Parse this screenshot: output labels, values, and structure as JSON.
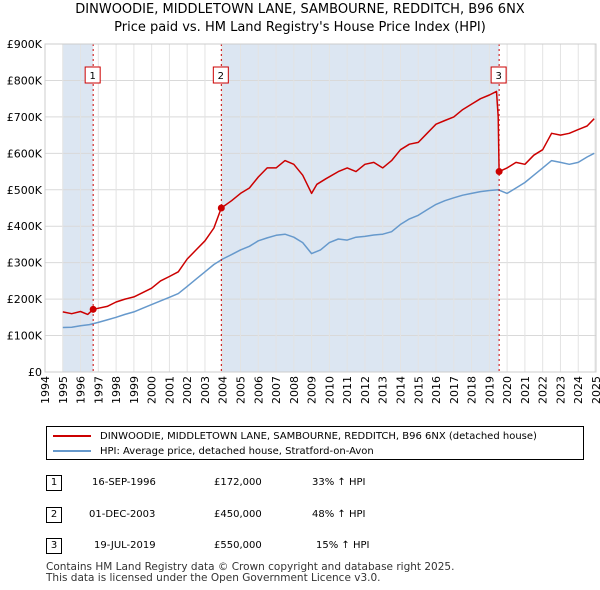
{
  "title_line1": "DINWOODIE, MIDDLETOWN LANE, SAMBOURNE, REDDITCH, B96 6NX",
  "title_line2": "Price paid vs. HM Land Registry's House Price Index (HPI)",
  "chart_data": {
    "type": "line",
    "title": "Price paid vs. HM Land Registry's House Price Index (HPI)",
    "xlabel": "",
    "ylabel": "",
    "xlim": [
      1995,
      2025
    ],
    "ylim": [
      0,
      900000
    ],
    "x_ticks": [
      1994,
      1995,
      1996,
      1997,
      1998,
      1999,
      2000,
      2001,
      2002,
      2003,
      2004,
      2005,
      2006,
      2007,
      2008,
      2009,
      2010,
      2011,
      2012,
      2013,
      2014,
      2015,
      2016,
      2017,
      2018,
      2019,
      2020,
      2021,
      2022,
      2023,
      2024,
      2025
    ],
    "y_ticks": [
      0,
      100000,
      200000,
      300000,
      400000,
      500000,
      600000,
      700000,
      800000,
      900000
    ],
    "y_tick_labels": [
      "£0",
      "£100K",
      "£200K",
      "£300K",
      "£400K",
      "£500K",
      "£600K",
      "£700K",
      "£800K",
      "£900K"
    ],
    "series": [
      {
        "name": "DINWOODIE, MIDDLETOWN LANE, SAMBOURNE, REDDITCH, B96 6NX (detached house)",
        "color": "#cc0000",
        "x": [
          1995.0,
          1995.5,
          1996.0,
          1996.4,
          1996.71,
          1997.5,
          1998.0,
          1998.5,
          1999.0,
          1999.5,
          2000.0,
          2000.5,
          2001.0,
          2001.5,
          2002.0,
          2002.5,
          2003.0,
          2003.5,
          2003.92,
          2004.5,
          2005.0,
          2005.5,
          2006.0,
          2006.5,
          2007.0,
          2007.5,
          2008.0,
          2008.5,
          2009.0,
          2009.3,
          2009.8,
          2010.5,
          2011.0,
          2011.5,
          2012.0,
          2012.5,
          2013.0,
          2013.5,
          2014.0,
          2014.5,
          2015.0,
          2015.5,
          2016.0,
          2016.5,
          2017.0,
          2017.5,
          2018.0,
          2018.5,
          2019.0,
          2019.4,
          2019.5,
          2019.55,
          2020.0,
          2020.5,
          2021.0,
          2021.5,
          2022.0,
          2022.5,
          2023.0,
          2023.5,
          2024.0,
          2024.5,
          2024.9
        ],
        "values": [
          165000,
          160000,
          166000,
          158000,
          172000,
          180000,
          192000,
          200000,
          206000,
          218000,
          230000,
          250000,
          262000,
          275000,
          310000,
          335000,
          360000,
          395000,
          450000,
          470000,
          490000,
          505000,
          535000,
          560000,
          560000,
          580000,
          570000,
          540000,
          490000,
          515000,
          530000,
          550000,
          560000,
          550000,
          570000,
          575000,
          560000,
          580000,
          610000,
          625000,
          630000,
          655000,
          680000,
          690000,
          700000,
          720000,
          735000,
          750000,
          760000,
          770000,
          700000,
          550000,
          560000,
          575000,
          570000,
          595000,
          610000,
          655000,
          650000,
          655000,
          665000,
          675000,
          695000
        ]
      },
      {
        "name": "HPI: Average price, detached house, Stratford-on-Avon",
        "color": "#6699cc",
        "x": [
          1995.0,
          1995.5,
          1996.0,
          1996.5,
          1997.0,
          1997.5,
          1998.0,
          1998.5,
          1999.0,
          1999.5,
          2000.0,
          2000.5,
          2001.0,
          2001.5,
          2002.0,
          2002.5,
          2003.0,
          2003.5,
          2004.0,
          2004.5,
          2005.0,
          2005.5,
          2006.0,
          2006.5,
          2007.0,
          2007.5,
          2008.0,
          2008.5,
          2009.0,
          2009.5,
          2010.0,
          2010.5,
          2011.0,
          2011.5,
          2012.0,
          2012.5,
          2013.0,
          2013.5,
          2014.0,
          2014.5,
          2015.0,
          2015.5,
          2016.0,
          2016.5,
          2017.0,
          2017.5,
          2018.0,
          2018.5,
          2019.0,
          2019.5,
          2020.0,
          2020.5,
          2021.0,
          2021.5,
          2022.0,
          2022.5,
          2023.0,
          2023.5,
          2024.0,
          2024.5,
          2024.9
        ],
        "values": [
          122000,
          123000,
          127000,
          130000,
          136000,
          143000,
          150000,
          158000,
          165000,
          175000,
          185000,
          195000,
          205000,
          215000,
          235000,
          255000,
          275000,
          295000,
          310000,
          322000,
          335000,
          345000,
          360000,
          368000,
          375000,
          378000,
          370000,
          355000,
          325000,
          335000,
          355000,
          365000,
          362000,
          370000,
          372000,
          376000,
          378000,
          385000,
          405000,
          420000,
          430000,
          445000,
          460000,
          470000,
          478000,
          485000,
          490000,
          495000,
          498000,
          500000,
          490000,
          505000,
          520000,
          540000,
          560000,
          580000,
          575000,
          570000,
          575000,
          590000,
          600000
        ]
      }
    ],
    "sale_markers": [
      {
        "label": "1",
        "x": 1996.71,
        "value": 172000
      },
      {
        "label": "2",
        "x": 2003.92,
        "value": 450000
      },
      {
        "label": "3",
        "x": 2019.55,
        "value": 550000
      }
    ],
    "legend_position": "below"
  },
  "legend": {
    "red": "DINWOODIE, MIDDLETOWN LANE, SAMBOURNE, REDDITCH, B96 6NX (detached house)",
    "blue": "HPI: Average price, detached house, Stratford-on-Avon"
  },
  "colors": {
    "red": "#cc0000",
    "blue": "#6699cc",
    "band": "#dce6f2"
  },
  "table": [
    {
      "num": "1",
      "date": "16-SEP-1996",
      "price": "£172,000",
      "hpi": "33% ↑ HPI"
    },
    {
      "num": "2",
      "date": "01-DEC-2003",
      "price": "£450,000",
      "hpi": "48% ↑ HPI"
    },
    {
      "num": "3",
      "date": "19-JUL-2019",
      "price": "£550,000",
      "hpi": "15% ↑ HPI"
    }
  ],
  "footer_line1": "Contains HM Land Registry data © Crown copyright and database right 2025.",
  "footer_line2": "This data is licensed under the Open Government Licence v3.0."
}
